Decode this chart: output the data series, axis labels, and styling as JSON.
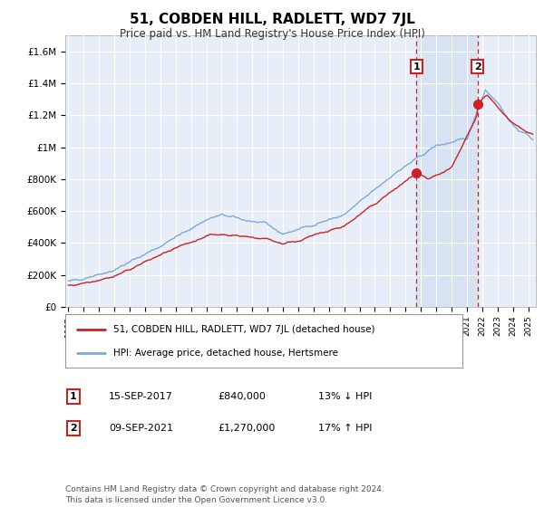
{
  "title": "51, COBDEN HILL, RADLETT, WD7 7JL",
  "subtitle": "Price paid vs. HM Land Registry's House Price Index (HPI)",
  "title_fontsize": 11,
  "subtitle_fontsize": 8.5,
  "background_color": "#ffffff",
  "plot_bg_color": "#e8eef8",
  "grid_color": "#ffffff",
  "shade_color": "#ccdaee",
  "ylim": [
    0,
    1700000
  ],
  "yticks": [
    0,
    200000,
    400000,
    600000,
    800000,
    1000000,
    1200000,
    1400000,
    1600000
  ],
  "ytick_labels": [
    "£0",
    "£200K",
    "£400K",
    "£600K",
    "£800K",
    "£1M",
    "£1.2M",
    "£1.4M",
    "£1.6M"
  ],
  "xlim_start": 1994.8,
  "xlim_end": 2025.5,
  "xtick_years": [
    1995,
    1996,
    1997,
    1998,
    1999,
    2000,
    2001,
    2002,
    2003,
    2004,
    2005,
    2006,
    2007,
    2008,
    2009,
    2010,
    2011,
    2012,
    2013,
    2014,
    2015,
    2016,
    2017,
    2018,
    2019,
    2020,
    2021,
    2022,
    2023,
    2024,
    2025
  ],
  "hpi_color": "#7aaadd",
  "price_color": "#cc2222",
  "marker1_year": 2017.71,
  "marker1_price": 840000,
  "marker2_year": 2021.69,
  "marker2_price": 1270000,
  "vline_color": "#cc2222",
  "annotation_box_color": "#cc2222",
  "legend_label1": "51, COBDEN HILL, RADLETT, WD7 7JL (detached house)",
  "legend_label2": "HPI: Average price, detached house, Hertsmere",
  "note1_num": "1",
  "note1_date": "15-SEP-2017",
  "note1_price": "£840,000",
  "note1_pct": "13% ↓ HPI",
  "note2_num": "2",
  "note2_date": "09-SEP-2021",
  "note2_price": "£1,270,000",
  "note2_pct": "17% ↑ HPI",
  "footer": "Contains HM Land Registry data © Crown copyright and database right 2024.\nThis data is licensed under the Open Government Licence v3.0.",
  "footer_fontsize": 6.5
}
